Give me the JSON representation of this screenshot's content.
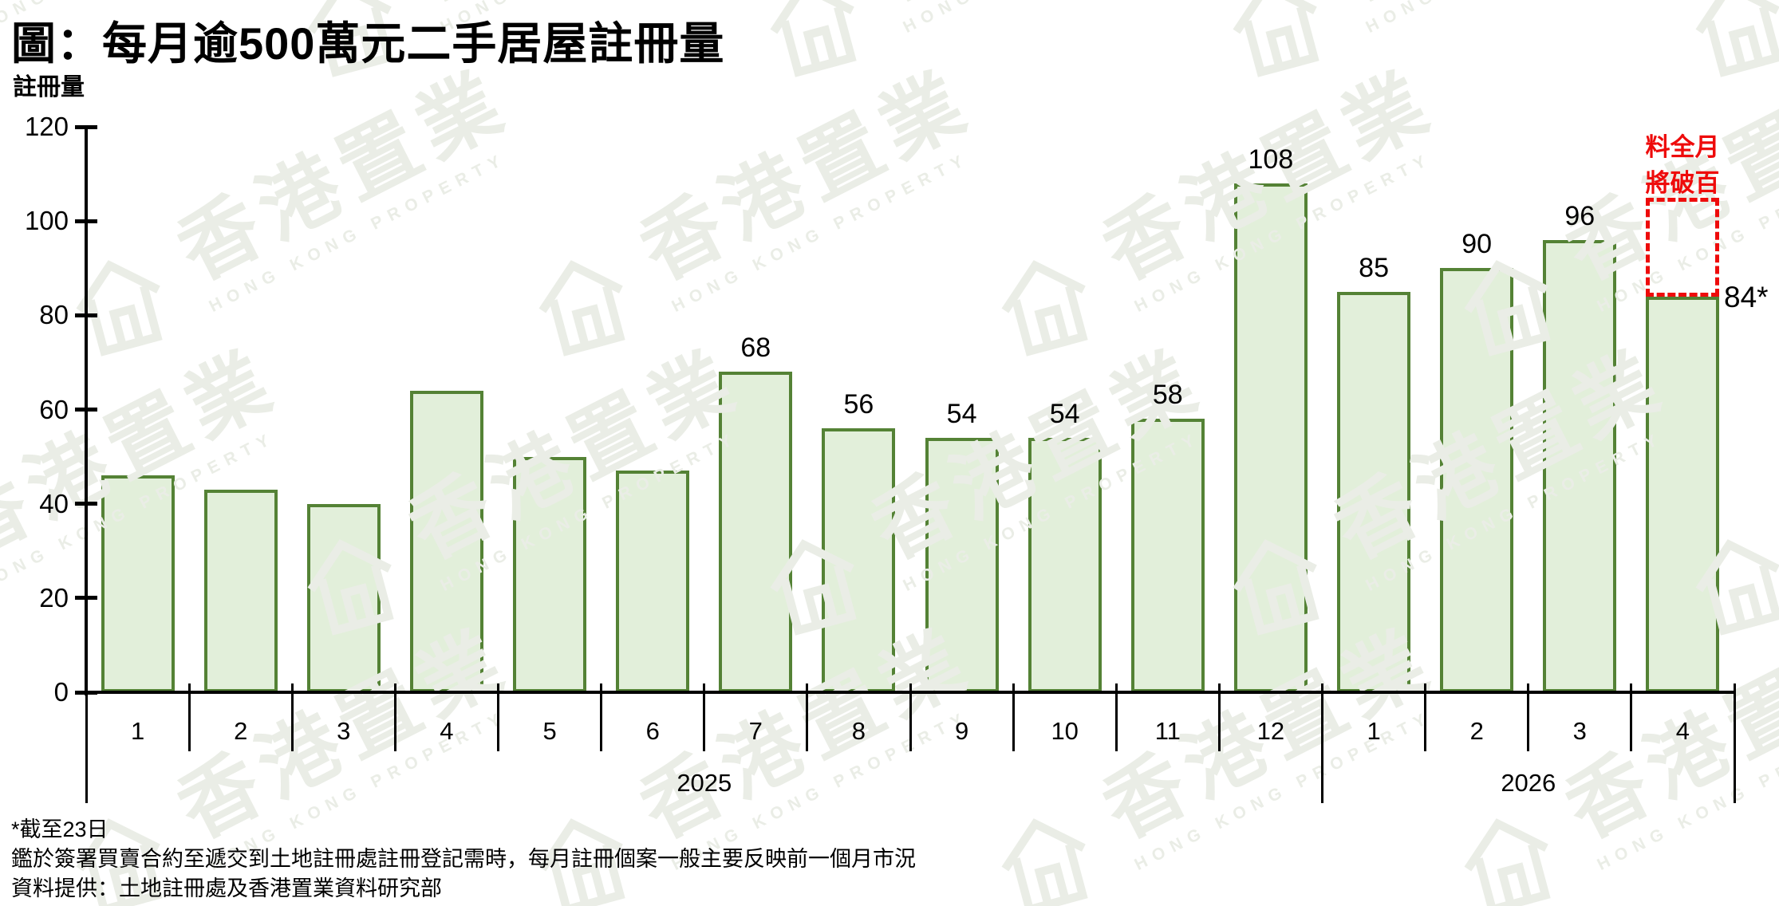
{
  "watermark": {
    "brand_zh": "香港置業",
    "brand_en": "HONG KONG PROPERTY"
  },
  "chart_data": {
    "type": "bar",
    "title": "圖：每月逾500萬元二手居屋註冊量",
    "ylabel": "註冊量",
    "xlabel": "",
    "ylim": [
      0,
      120
    ],
    "y_ticks": [
      0,
      20,
      40,
      60,
      80,
      100,
      120
    ],
    "grid": false,
    "legend": false,
    "categories": [
      "2025-1",
      "2025-2",
      "2025-3",
      "2025-4",
      "2025-5",
      "2025-6",
      "2025-7",
      "2025-8",
      "2025-9",
      "2025-10",
      "2025-11",
      "2025-12",
      "2026-1",
      "2026-2",
      "2026-3",
      "2026-4"
    ],
    "values": [
      46,
      43,
      40,
      64,
      50,
      47,
      68,
      56,
      54,
      54,
      58,
      108,
      85,
      90,
      96,
      84
    ],
    "bar_labels": [
      null,
      null,
      null,
      null,
      null,
      null,
      "68",
      "56",
      "54",
      "54",
      "58",
      "108",
      "85",
      "90",
      "96",
      null
    ],
    "side_label_last_bar": "84*",
    "x_groups": [
      {
        "year": "2025",
        "months": [
          "1",
          "2",
          "3",
          "4",
          "5",
          "6",
          "7",
          "8",
          "9",
          "10",
          "11",
          "12"
        ]
      },
      {
        "year": "2026",
        "months": [
          "1",
          "2",
          "3",
          "4"
        ]
      }
    ],
    "projection_box": {
      "category": "2026-4",
      "from_value": 84,
      "to_value": 105,
      "note_lines": [
        "料全月",
        "將破百"
      ]
    },
    "colors": {
      "bar_fill": "#E2EFDA",
      "bar_border": "#548235",
      "annotation_red": "#EE0B0B",
      "axis": "#000000"
    }
  },
  "footnotes": {
    "lines": [
      "*截至23日",
      "鑑於簽署買賣合約至遞交到土地註冊處註冊登記需時，每月註冊個案一般主要反映前一個月市況",
      "資料提供：土地註冊處及香港置業資料研究部"
    ]
  }
}
